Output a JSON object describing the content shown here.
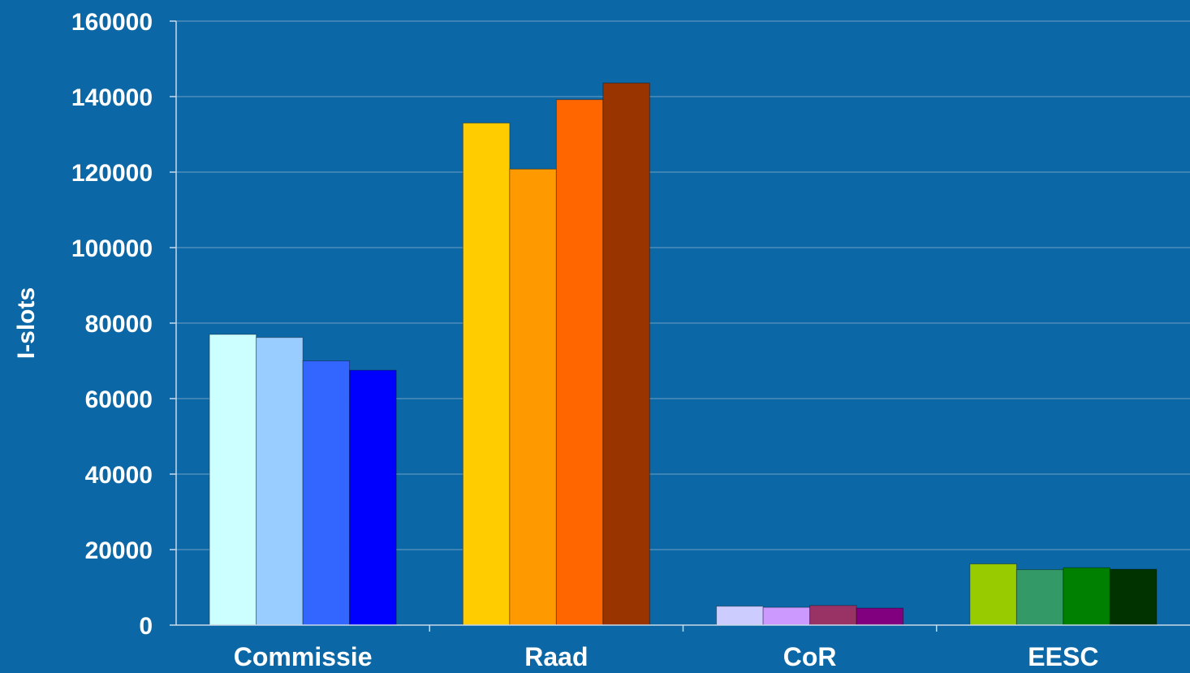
{
  "chart_data": {
    "type": "bar",
    "title": "",
    "xlabel": "",
    "ylabel": "I-slots",
    "ylim": [
      0,
      160000
    ],
    "yticks": [
      0,
      20000,
      40000,
      60000,
      80000,
      100000,
      120000,
      140000,
      160000
    ],
    "grid": true,
    "legend": "none",
    "categories": [
      "Commissie",
      "Raad",
      "CoR",
      "EESC"
    ],
    "series": [
      {
        "values": [
          77000,
          133000,
          5000,
          16200
        ]
      },
      {
        "values": [
          76200,
          120800,
          4700,
          14700
        ]
      },
      {
        "values": [
          70000,
          139200,
          5200,
          15200
        ]
      },
      {
        "values": [
          67500,
          143600,
          4500,
          14800
        ]
      }
    ],
    "bar_colors": [
      [
        "#ccffff",
        "#99ccff",
        "#3366ff",
        "#0000ff"
      ],
      [
        "#ffcc00",
        "#ff9900",
        "#ff6600",
        "#993300"
      ],
      [
        "#ccccff",
        "#cc99ff",
        "#993366",
        "#800080"
      ],
      [
        "#99cc00",
        "#339966",
        "#008000",
        "#003300"
      ]
    ],
    "colors": {
      "background": "#0b67a5",
      "text": "#ffffff",
      "gridline": "#6f9fc6"
    }
  }
}
